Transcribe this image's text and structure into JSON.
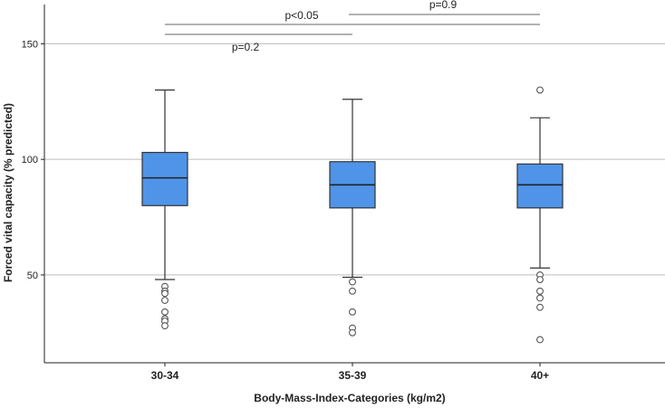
{
  "chart_data": {
    "type": "boxplot",
    "xlabel": "Body-Mass-Index-Categories (kg/m2)",
    "ylabel": "Forced vital capacity (% predicted)",
    "ylim": [
      12,
      167
    ],
    "yticks": [
      50,
      100,
      150
    ],
    "grid": true,
    "colors": {
      "box_fill": "#4f94e8",
      "box_stroke": "#333333",
      "grid": "#bdbdbd",
      "axis": "#222222"
    },
    "categories": [
      "30-34",
      "35-39",
      "40+"
    ],
    "boxes": [
      {
        "label": "30-34",
        "whisker_low": 48,
        "q1": 80,
        "median": 92,
        "q3": 103,
        "whisker_high": 130,
        "outliers": [
          45,
          43,
          42,
          39,
          34,
          31,
          30,
          28
        ]
      },
      {
        "label": "35-39",
        "whisker_low": 49,
        "q1": 79,
        "median": 89,
        "q3": 99,
        "whisker_high": 126,
        "outliers": [
          47,
          43,
          34,
          27,
          25
        ]
      },
      {
        "label": "40+",
        "whisker_low": 53,
        "q1": 79,
        "median": 89,
        "q3": 98,
        "whisker_high": 118,
        "outliers": [
          130,
          50,
          48,
          43,
          40,
          36,
          22
        ]
      }
    ],
    "comparisons": [
      {
        "from": 0,
        "to": 2,
        "label": "p<0.05"
      },
      {
        "from": 1,
        "to": 2,
        "label": "p=0.9"
      },
      {
        "from": 0,
        "to": 1,
        "label": "p=0.2"
      }
    ]
  }
}
